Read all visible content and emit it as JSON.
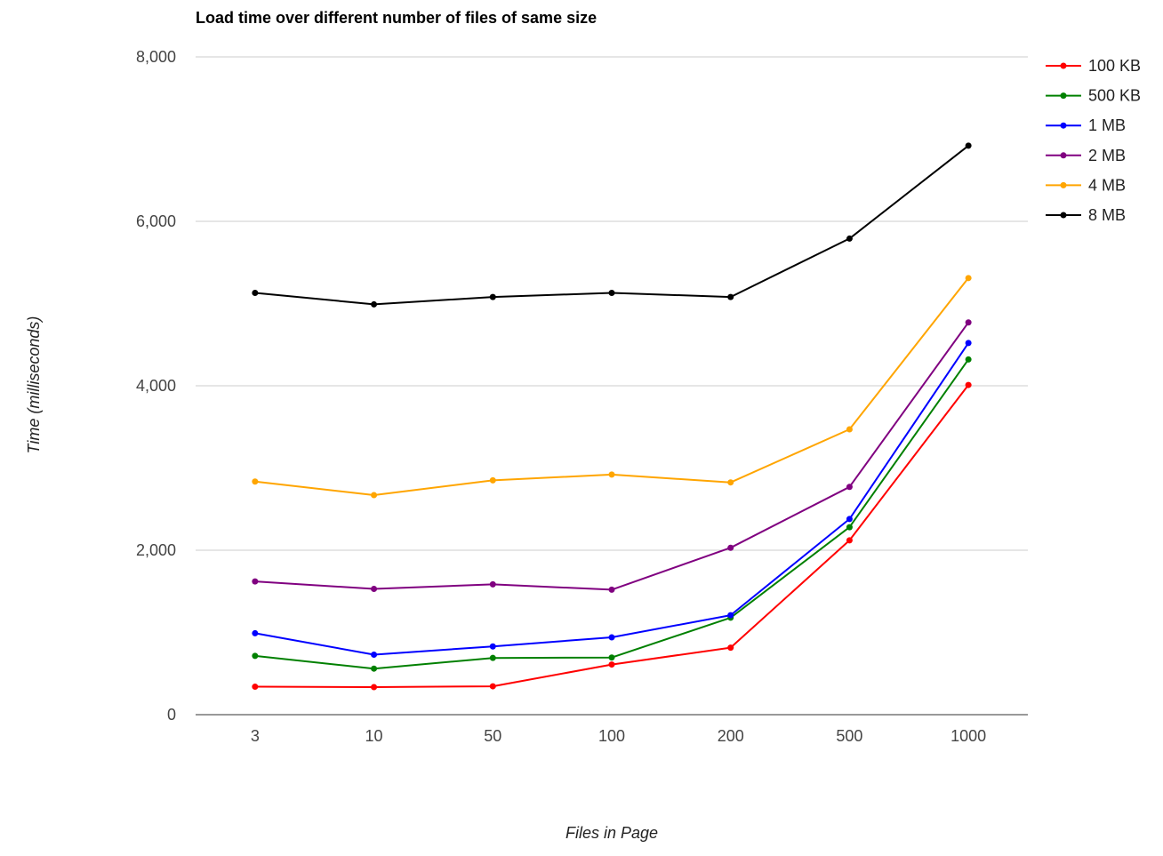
{
  "chart_data": {
    "type": "line",
    "title": "Load time over different number of files of same size",
    "xlabel": "Files in Page",
    "ylabel": "Time (milliseconds)",
    "categories": [
      "3",
      "10",
      "50",
      "100",
      "200",
      "500",
      "1000"
    ],
    "ylim": [
      0,
      8000
    ],
    "yticks": [
      0,
      2000,
      4000,
      6000,
      8000
    ],
    "ytick_labels": [
      "0",
      "2,000",
      "4,000",
      "6,000",
      "8,000"
    ],
    "grid": true,
    "legend_position": "right",
    "series": [
      {
        "name": "100 KB",
        "color": "#ff0000",
        "values": [
          340,
          335,
          345,
          610,
          815,
          2120,
          4010
        ]
      },
      {
        "name": "500 KB",
        "color": "#008000",
        "values": [
          715,
          560,
          690,
          695,
          1180,
          2280,
          4320
        ]
      },
      {
        "name": "1 MB",
        "color": "#0000ff",
        "values": [
          990,
          730,
          830,
          940,
          1210,
          2380,
          4520
        ]
      },
      {
        "name": "2 MB",
        "color": "#800080",
        "values": [
          1620,
          1530,
          1585,
          1520,
          2030,
          2770,
          4770
        ]
      },
      {
        "name": "4 MB",
        "color": "#ffa500",
        "values": [
          2835,
          2670,
          2850,
          2920,
          2825,
          3470,
          5310
        ]
      },
      {
        "name": "8 MB",
        "color": "#000000",
        "values": [
          5130,
          4990,
          5080,
          5130,
          5080,
          5790,
          6920
        ]
      }
    ]
  }
}
